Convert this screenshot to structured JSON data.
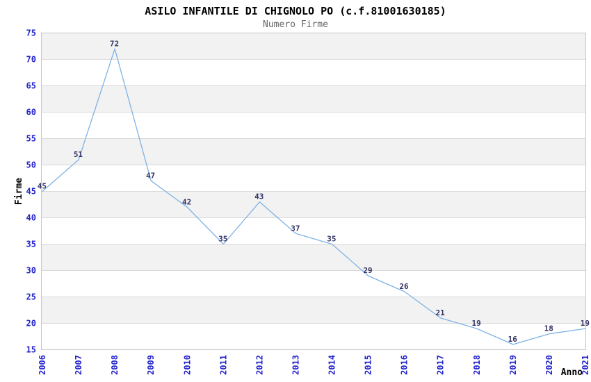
{
  "chart_data": {
    "type": "line",
    "title": "ASILO INFANTILE DI CHIGNOLO PO (c.f.81001630185)",
    "subtitle": "Numero Firme",
    "xlabel": "Anno",
    "ylabel": "Firme",
    "categories": [
      "2006",
      "2007",
      "2008",
      "2009",
      "2010",
      "2011",
      "2012",
      "2013",
      "2014",
      "2015",
      "2016",
      "2017",
      "2018",
      "2019",
      "2020",
      "2021"
    ],
    "values": [
      45,
      51,
      72,
      47,
      42,
      35,
      43,
      37,
      35,
      29,
      26,
      21,
      19,
      16,
      18,
      19
    ],
    "ylim": [
      15,
      75
    ],
    "ytick_step": 5,
    "grid": true,
    "legend_position": "none",
    "value_labels_shown": true,
    "x_tick_rotation_degrees": -90,
    "colors": {
      "line": "#7eb2e4",
      "tick_label": "#2222cc",
      "value_label": "#333366",
      "band_gray": "#f2f2f2",
      "band_white": "#ffffff",
      "gridline": "#d9d9d9",
      "plot_border": "#c6c6c6",
      "title": "#000000",
      "subtitle": "#666666",
      "axis_title": "#000000",
      "background": "#ffffff"
    }
  }
}
